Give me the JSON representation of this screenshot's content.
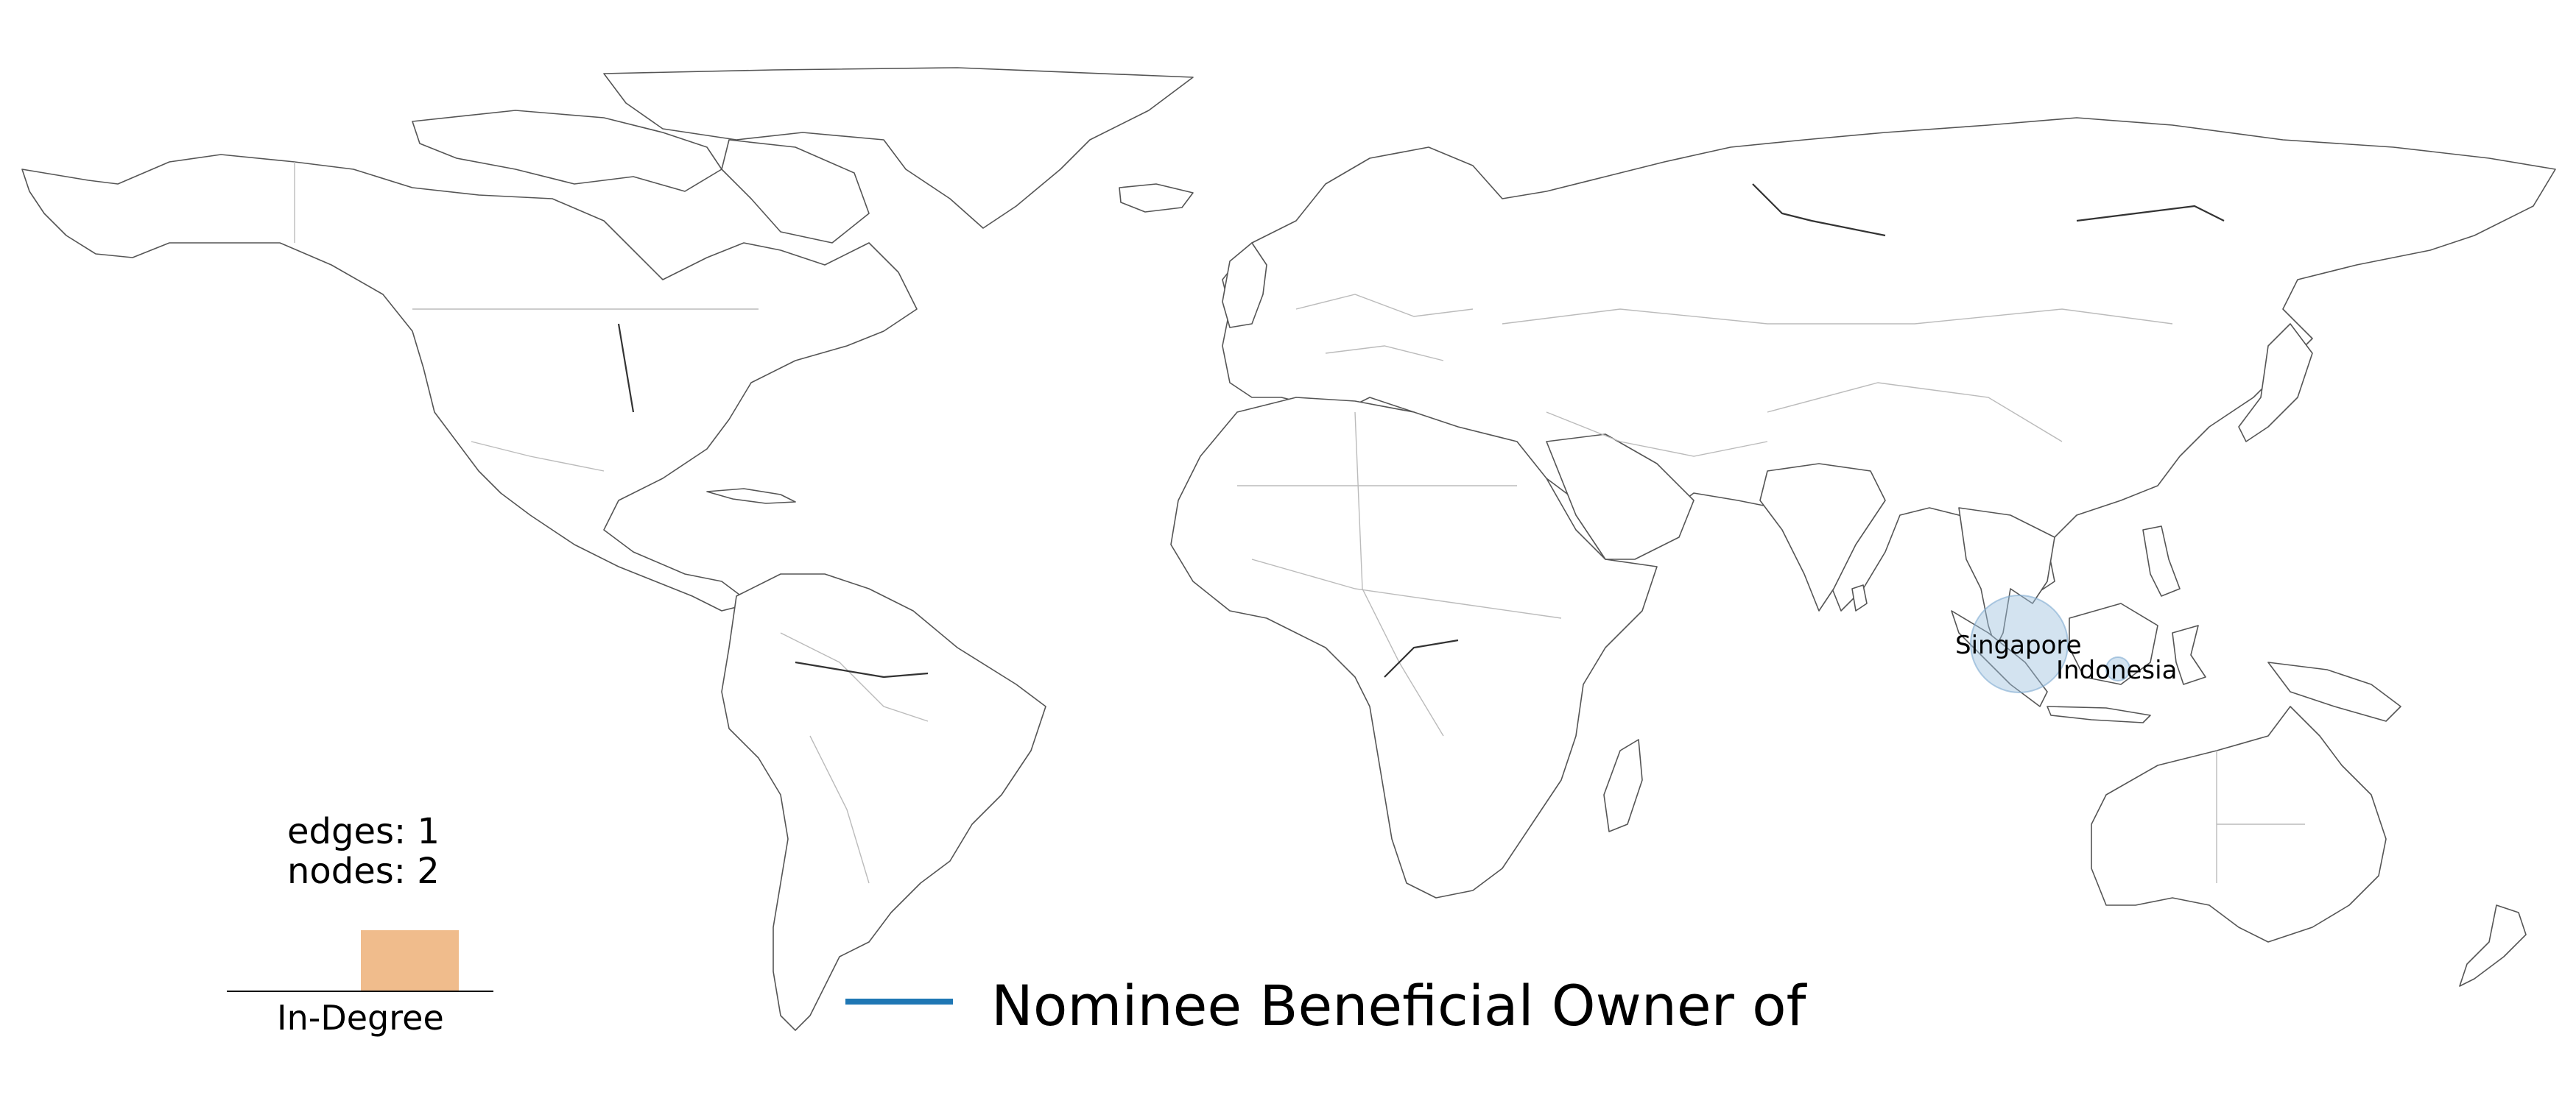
{
  "map": {
    "projection": "equirectangular world map",
    "land_fill": "#ffffff",
    "outline_color": "#555555",
    "border_color": "#bbbbbb",
    "nodes": [
      {
        "id": "singapore",
        "label": "Singapore",
        "lon": 103.8,
        "lat": 1.35,
        "color": "#9ec0dd",
        "relative_size": "large"
      },
      {
        "id": "indonesia",
        "label": "Indonesia",
        "lon": 113.9,
        "lat": -0.8,
        "color": "#9ec0dd",
        "relative_size": "small"
      }
    ],
    "edges": [
      {
        "source": "singapore",
        "target": "indonesia",
        "type": "Nominee Beneficial Owner of"
      }
    ]
  },
  "stats": {
    "edges_text": "edges: 1",
    "nodes_text": "nodes: 2"
  },
  "histogram": {
    "label": "In-Degree",
    "bar_color": "#f0bc8c",
    "values": [
      0,
      1
    ]
  },
  "legend": {
    "items": [
      {
        "label": "Nominee Beneficial Owner of",
        "color": "#1f77b4"
      }
    ]
  }
}
